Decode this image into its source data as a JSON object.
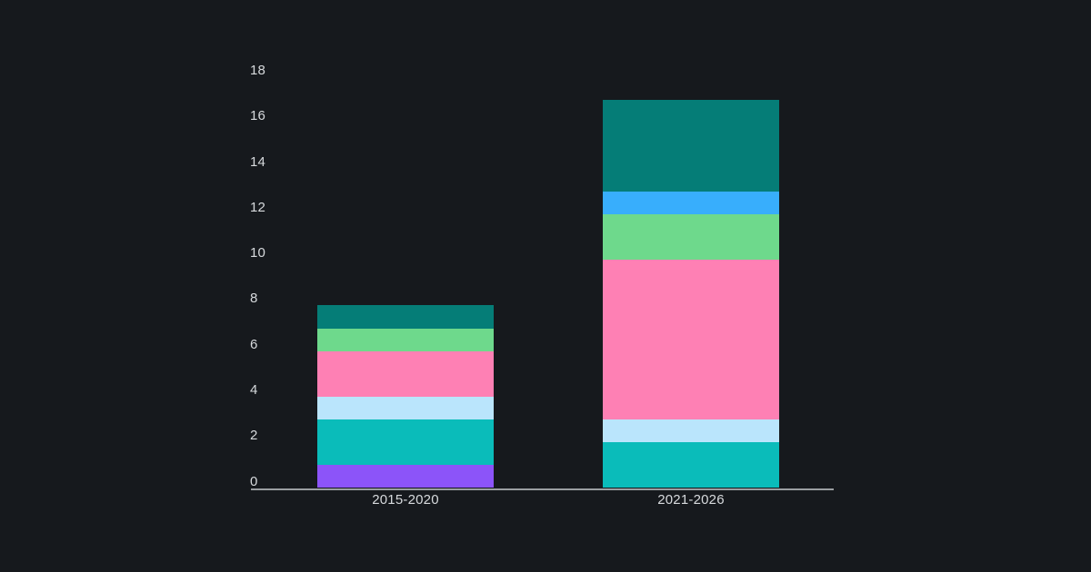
{
  "chart_data": {
    "type": "bar",
    "stacked": true,
    "title": "",
    "xlabel": "",
    "ylabel": "",
    "categories": [
      "2015-2020",
      "2021-2026"
    ],
    "series": [
      {
        "name": "purple",
        "color": "#8c54f9",
        "values": [
          1,
          0
        ]
      },
      {
        "name": "teal",
        "color": "#0abcba",
        "values": [
          2,
          2
        ]
      },
      {
        "name": "light-blue",
        "color": "#bae5fc",
        "values": [
          1,
          1
        ]
      },
      {
        "name": "pink",
        "color": "#fe80b4",
        "values": [
          2,
          7
        ]
      },
      {
        "name": "green",
        "color": "#6ed98c",
        "values": [
          1,
          2
        ]
      },
      {
        "name": "blue",
        "color": "#38aefc",
        "values": [
          0,
          1
        ]
      },
      {
        "name": "dark-teal",
        "color": "#057d77",
        "values": [
          1,
          4
        ]
      }
    ],
    "totals": [
      8,
      17
    ],
    "y_ticks": [
      0,
      2,
      4,
      6,
      8,
      10,
      12,
      14,
      16,
      18
    ],
    "ylim": [
      0,
      18
    ],
    "grid": "off",
    "legend": "none"
  },
  "colors": {
    "background": "#16191d",
    "text": "#d7dadd",
    "axis_line": "#9a9ea1"
  }
}
